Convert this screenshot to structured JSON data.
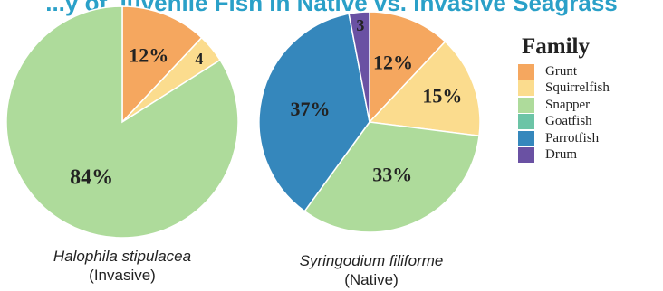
{
  "header": {
    "title": "...y of Juvenile Fish in Native vs. Invasive Seagrass"
  },
  "legend": {
    "title": "Family",
    "items": [
      {
        "label": "Grunt",
        "color": "#f5a75f"
      },
      {
        "label": "Squirrelfish",
        "color": "#fbdc8e"
      },
      {
        "label": "Snapper",
        "color": "#aedb9b"
      },
      {
        "label": "Goatfish",
        "color": "#6cc4a6"
      },
      {
        "label": "Parrotfish",
        "color": "#3587bc"
      },
      {
        "label": "Drum",
        "color": "#6a51a3"
      }
    ]
  },
  "chart_data": [
    {
      "type": "pie",
      "caption": {
        "species": "Halophila stipulacea",
        "status": "(Invasive)"
      },
      "slices": [
        {
          "category": "Grunt",
          "value": 12,
          "label": "12%"
        },
        {
          "category": "Squirrelfish",
          "value": 4,
          "label": "4"
        },
        {
          "category": "Snapper",
          "value": 84,
          "label": "84%"
        }
      ]
    },
    {
      "type": "pie",
      "caption": {
        "species": "Syringodium filiforme",
        "status": "(Native)"
      },
      "slices": [
        {
          "category": "Grunt",
          "value": 12,
          "label": "12%"
        },
        {
          "category": "Squirrelfish",
          "value": 15,
          "label": "15%"
        },
        {
          "category": "Snapper",
          "value": 33,
          "label": "33%"
        },
        {
          "category": "Parrotfish",
          "value": 37,
          "label": "37%"
        },
        {
          "category": "Drum",
          "value": 3,
          "label": "3"
        }
      ]
    }
  ]
}
